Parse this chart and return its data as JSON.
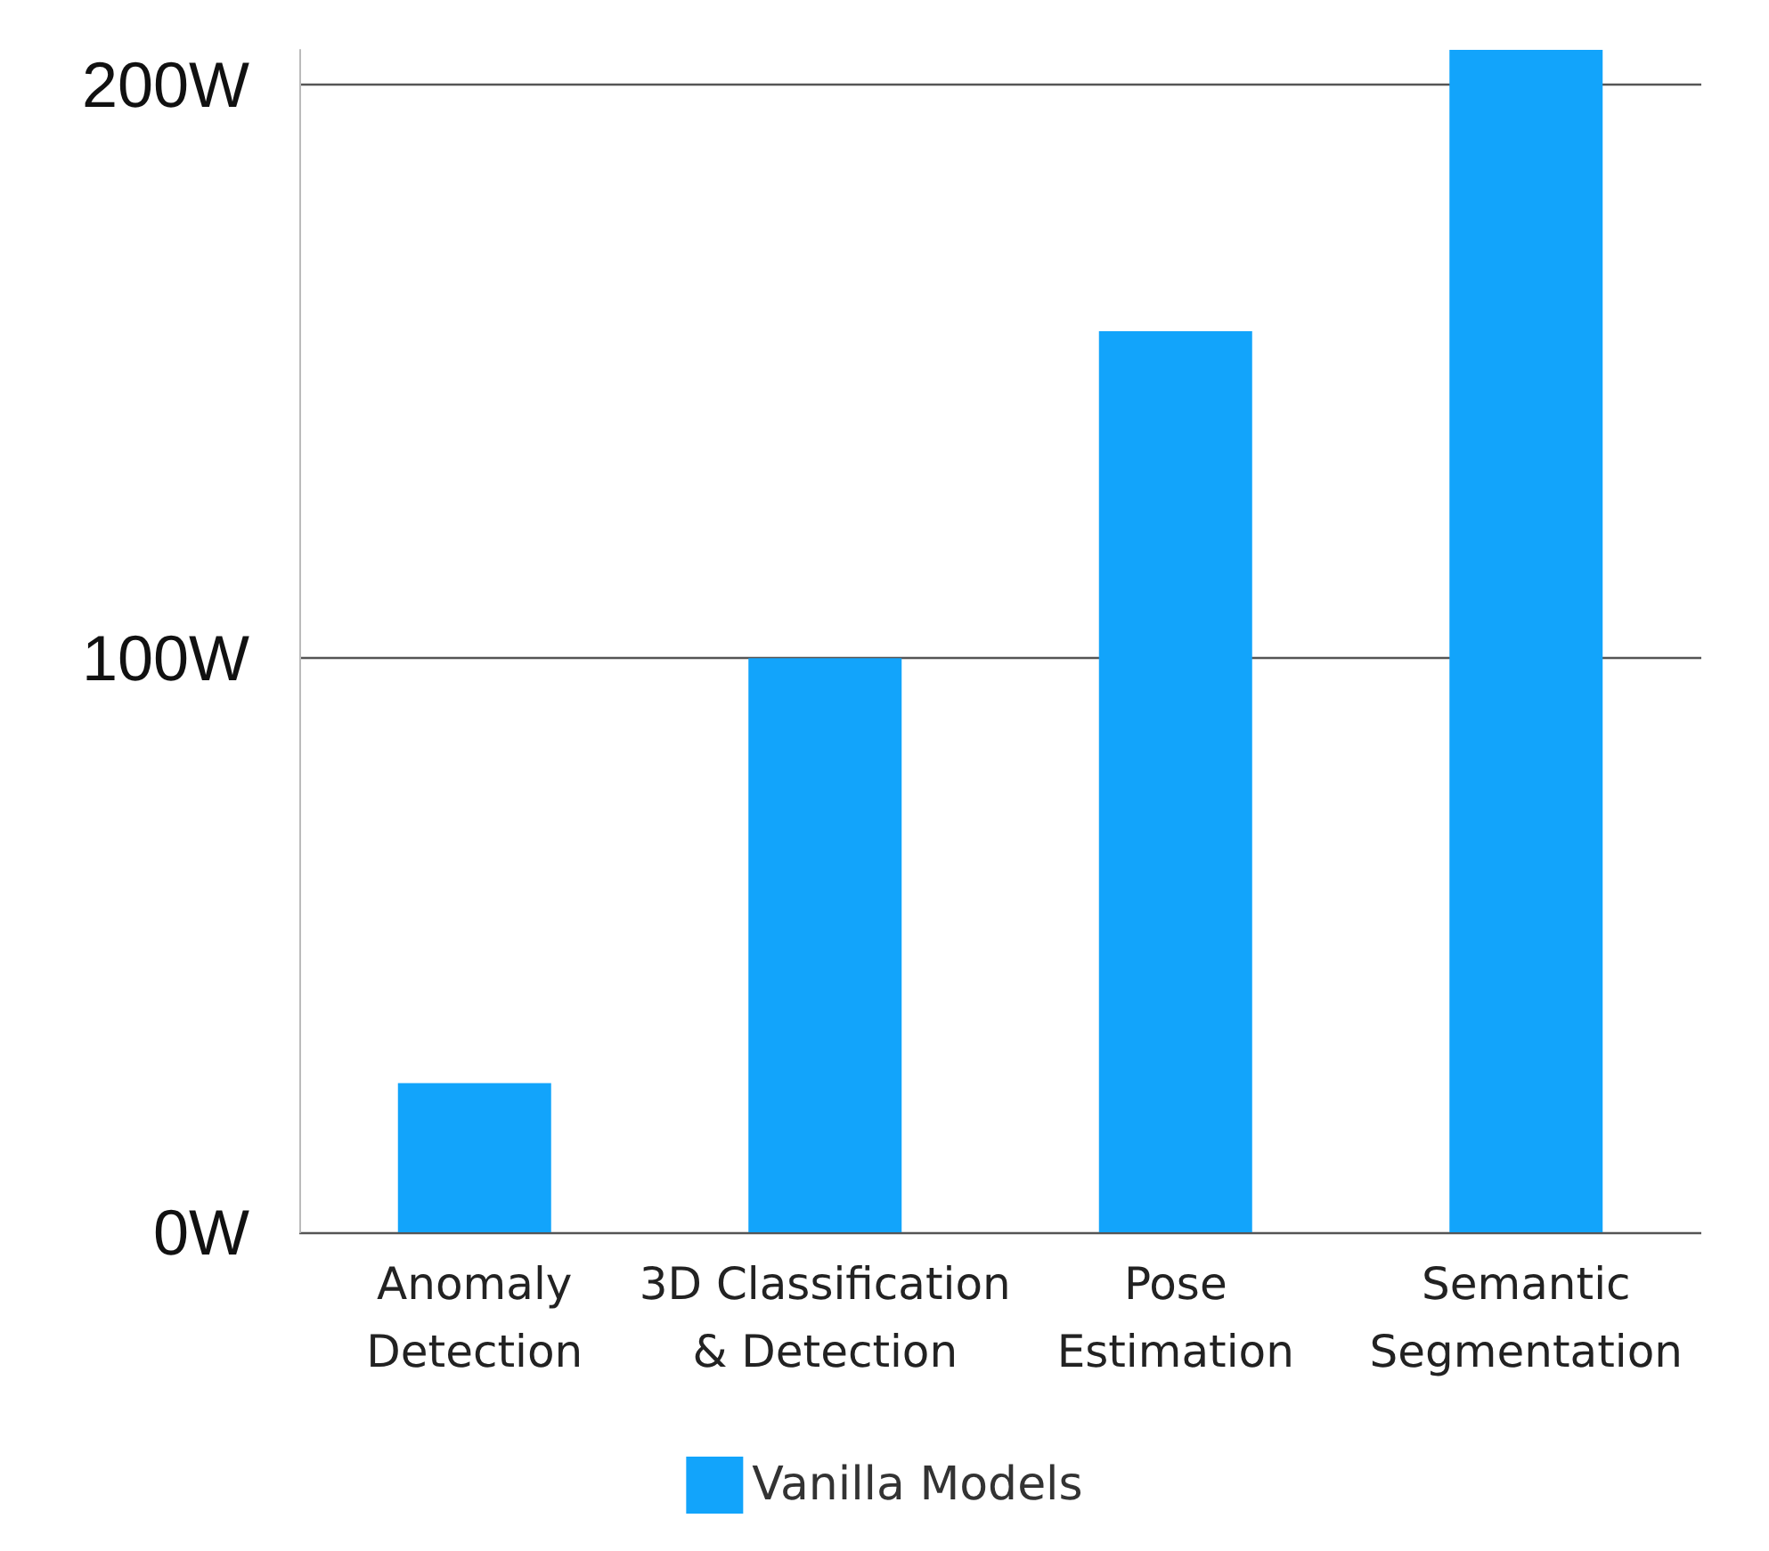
{
  "chart_data": {
    "type": "bar",
    "categories": [
      "Anomaly\nDetection",
      "3D Classification\n& Detection",
      "Pose\nEstimation",
      "Semantic\nSegmentation"
    ],
    "series": [
      {
        "name": "Vanilla Models",
        "color": "#12a4fb",
        "values": [
          26,
          100,
          157,
          206
        ]
      }
    ],
    "yticks": [
      {
        "value": 0,
        "label": "0W"
      },
      {
        "value": 100,
        "label": "100W"
      },
      {
        "value": 200,
        "label": "200W"
      }
    ],
    "ylim": [
      0,
      206
    ],
    "grid": "y",
    "legend": "bottom"
  }
}
